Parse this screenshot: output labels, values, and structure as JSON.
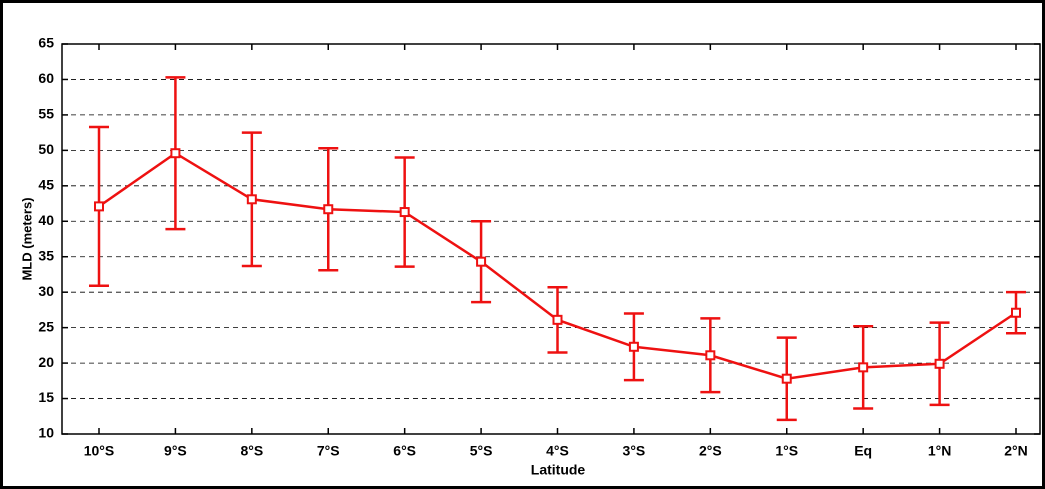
{
  "chart_data": {
    "type": "line",
    "x_label": "Latitude",
    "y_label": "MLD (meters)",
    "categories": [
      "10°S",
      "9°S",
      "8°S",
      "7°S",
      "6°S",
      "5°S",
      "4°S",
      "3°S",
      "2°S",
      "1°S",
      "Eq",
      "1°N",
      "2°N"
    ],
    "values": [
      42.1,
      49.6,
      43.1,
      41.7,
      41.3,
      34.3,
      26.1,
      22.3,
      21.1,
      17.8,
      19.4,
      19.9,
      27.1
    ],
    "errors": [
      11.2,
      10.7,
      9.4,
      8.6,
      7.7,
      5.7,
      4.6,
      4.7,
      5.2,
      5.8,
      5.8,
      5.8,
      2.9
    ],
    "color": "#ee1111",
    "ylim": [
      10,
      65
    ],
    "yticks": [
      10,
      15,
      20,
      25,
      30,
      35,
      40,
      45,
      50,
      55,
      60,
      65
    ],
    "grid": true
  }
}
